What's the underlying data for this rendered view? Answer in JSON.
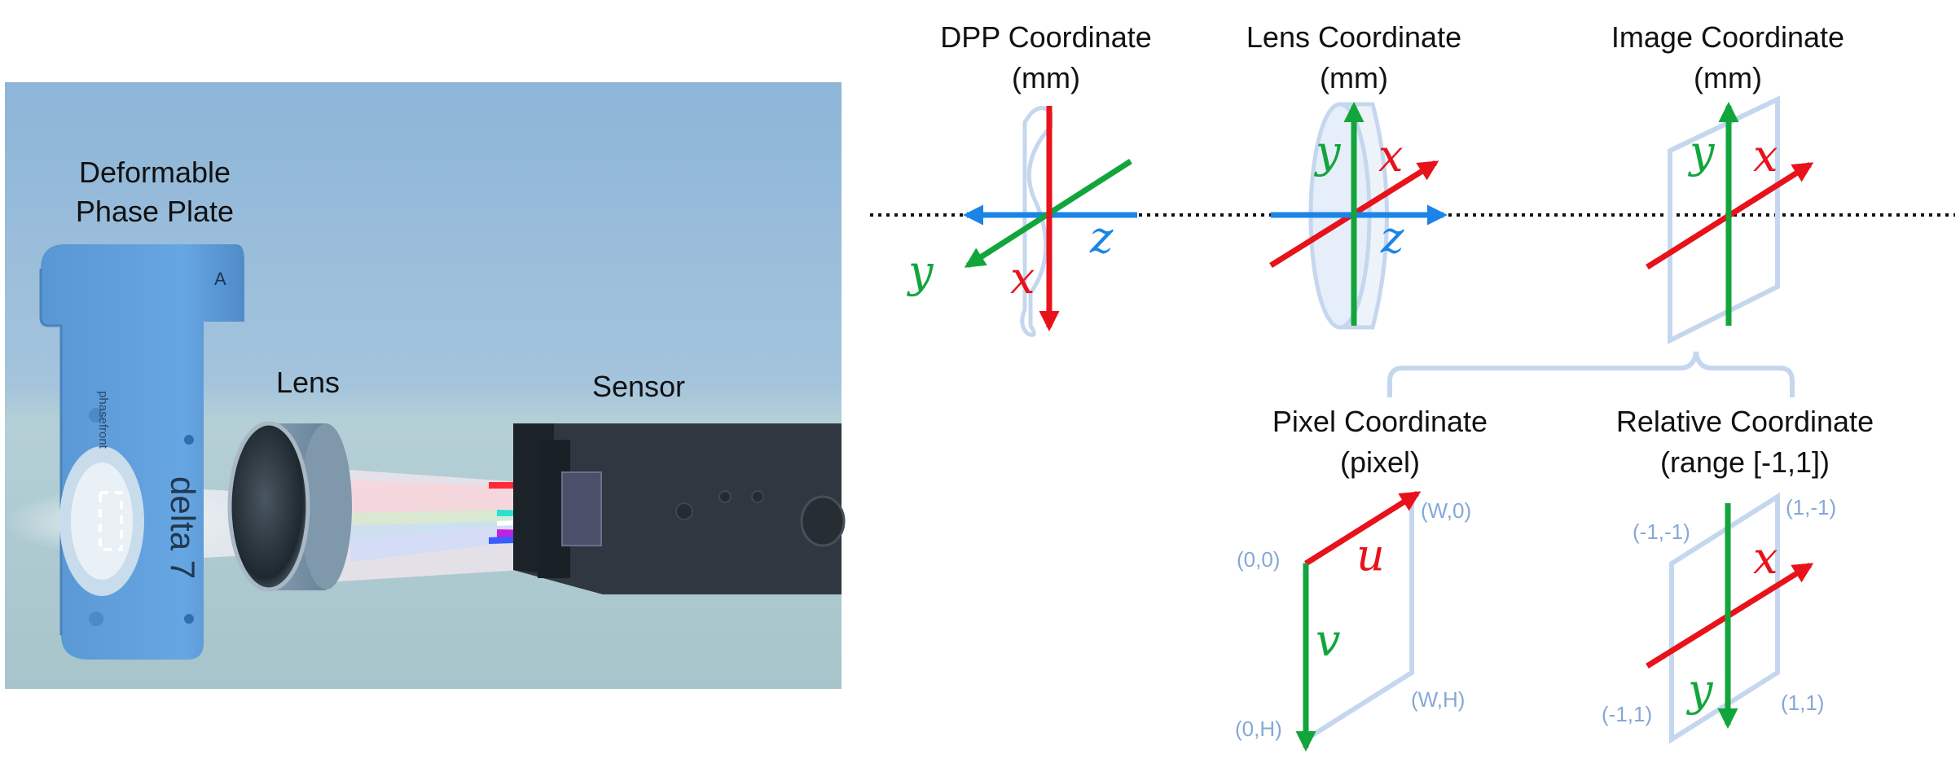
{
  "colors": {
    "red": "#e8121b",
    "green": "#12a53c",
    "blue": "#1b84e6",
    "outline": "#c5d7ee",
    "corner_text": "#86a8d6",
    "scene_sky_top": "#8fb8da",
    "scene_sky_bottom": "#a9c6cf",
    "mount": "#5f9fdc",
    "sensor_body": "#343c42"
  },
  "scene": {
    "dpp_label_line1": "Deformable",
    "dpp_label_line2": "Phase Plate",
    "dpp_mark": "A",
    "dpp_brand": "phasefront",
    "dpp_model": "delta 7",
    "lens_label": "Lens",
    "sensor_label": "Sensor"
  },
  "panels": {
    "dpp": {
      "title": "DPP Coordinate",
      "unit": "(mm)",
      "axis_x": "x",
      "axis_y": "y",
      "axis_z": "z"
    },
    "lens": {
      "title": "Lens Coordinate",
      "unit": "(mm)",
      "axis_x": "x",
      "axis_y": "y",
      "axis_z": "z"
    },
    "image": {
      "title": "Image Coordinate",
      "unit": "(mm)",
      "axis_x": "x",
      "axis_y": "y"
    },
    "pixel": {
      "title": "Pixel Coordinate",
      "unit": "(pixel)",
      "axis_u": "u",
      "axis_v": "v",
      "corner_tl": "(0,0)",
      "corner_tr": "(W,0)",
      "corner_bl": "(0,H)",
      "corner_br": "(W,H)"
    },
    "relative": {
      "title": "Relative Coordinate",
      "unit": "(range [-1,1])",
      "axis_x": "x",
      "axis_y": "y",
      "corner_tl": "(-1,-1)",
      "corner_tr": "(1,-1)",
      "corner_bl": "(-1,1)",
      "corner_br": "(1,1)"
    }
  }
}
